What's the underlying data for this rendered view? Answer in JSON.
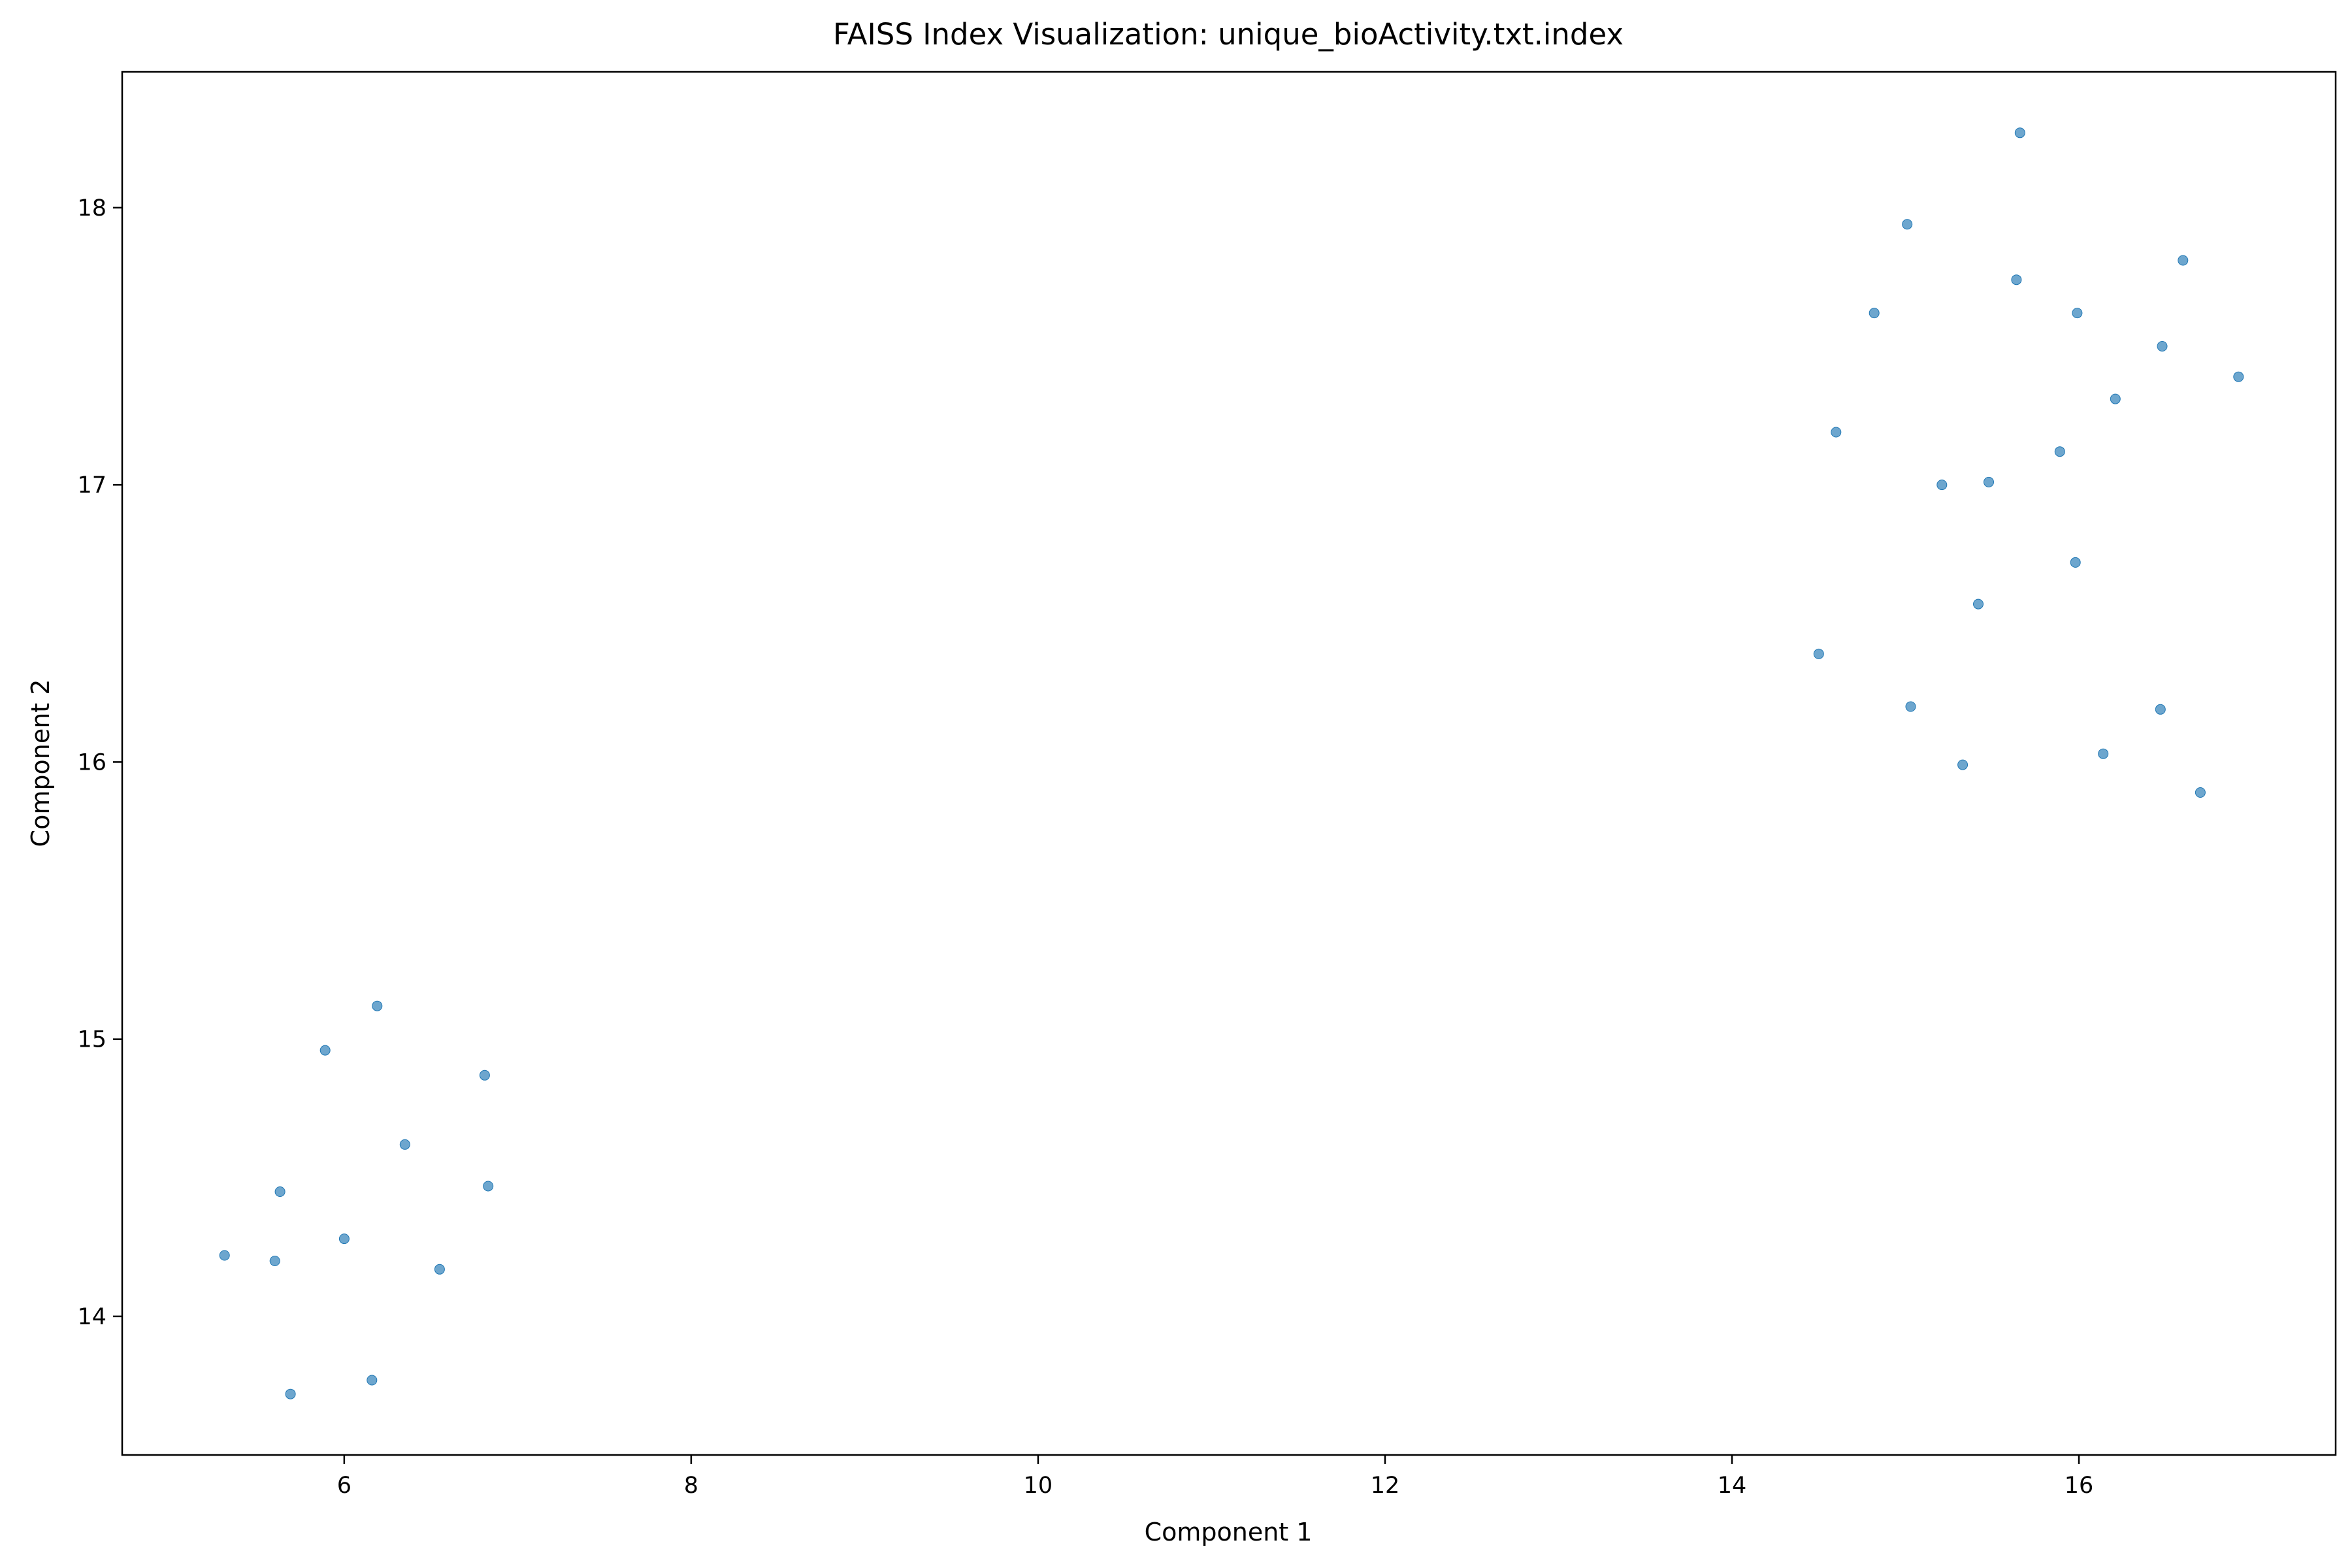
{
  "chart_data": {
    "type": "scatter",
    "title": "FAISS Index Visualization: unique_bioActivity.txt.index",
    "xlabel": "Component 1",
    "ylabel": "Component 2",
    "xlim": [
      4.72,
      17.48
    ],
    "ylim": [
      13.5,
      18.49
    ],
    "xticks": [
      6,
      8,
      10,
      12,
      14,
      16
    ],
    "yticks": [
      14,
      15,
      16,
      17,
      18
    ],
    "xtick_labels": [
      "6",
      "8",
      "10",
      "12",
      "14",
      "16"
    ],
    "ytick_labels": [
      "14",
      "15",
      "16",
      "17",
      "18"
    ],
    "grid": false,
    "legend": false,
    "point_color": "#1f77b4",
    "point_alpha": 0.65,
    "series": [
      {
        "x": [
          5.31,
          5.6,
          5.63,
          5.69,
          5.89,
          6.0,
          6.16,
          6.19,
          6.35,
          6.55,
          6.81,
          6.83,
          14.5,
          14.6,
          14.82,
          15.01,
          15.03,
          15.21,
          15.33,
          15.42,
          15.48,
          15.64,
          15.66,
          15.89,
          15.98,
          15.99,
          16.14,
          16.21,
          16.47,
          16.48,
          16.6,
          16.7,
          16.92
        ],
        "y": [
          14.22,
          14.2,
          14.45,
          13.72,
          14.96,
          14.28,
          13.77,
          15.12,
          14.62,
          14.17,
          14.87,
          14.47,
          16.39,
          17.19,
          17.62,
          17.94,
          16.2,
          17.0,
          15.99,
          16.57,
          17.01,
          17.74,
          18.27,
          17.12,
          16.72,
          17.62,
          16.03,
          17.31,
          16.19,
          17.5,
          17.81,
          15.89,
          17.39
        ]
      }
    ]
  }
}
